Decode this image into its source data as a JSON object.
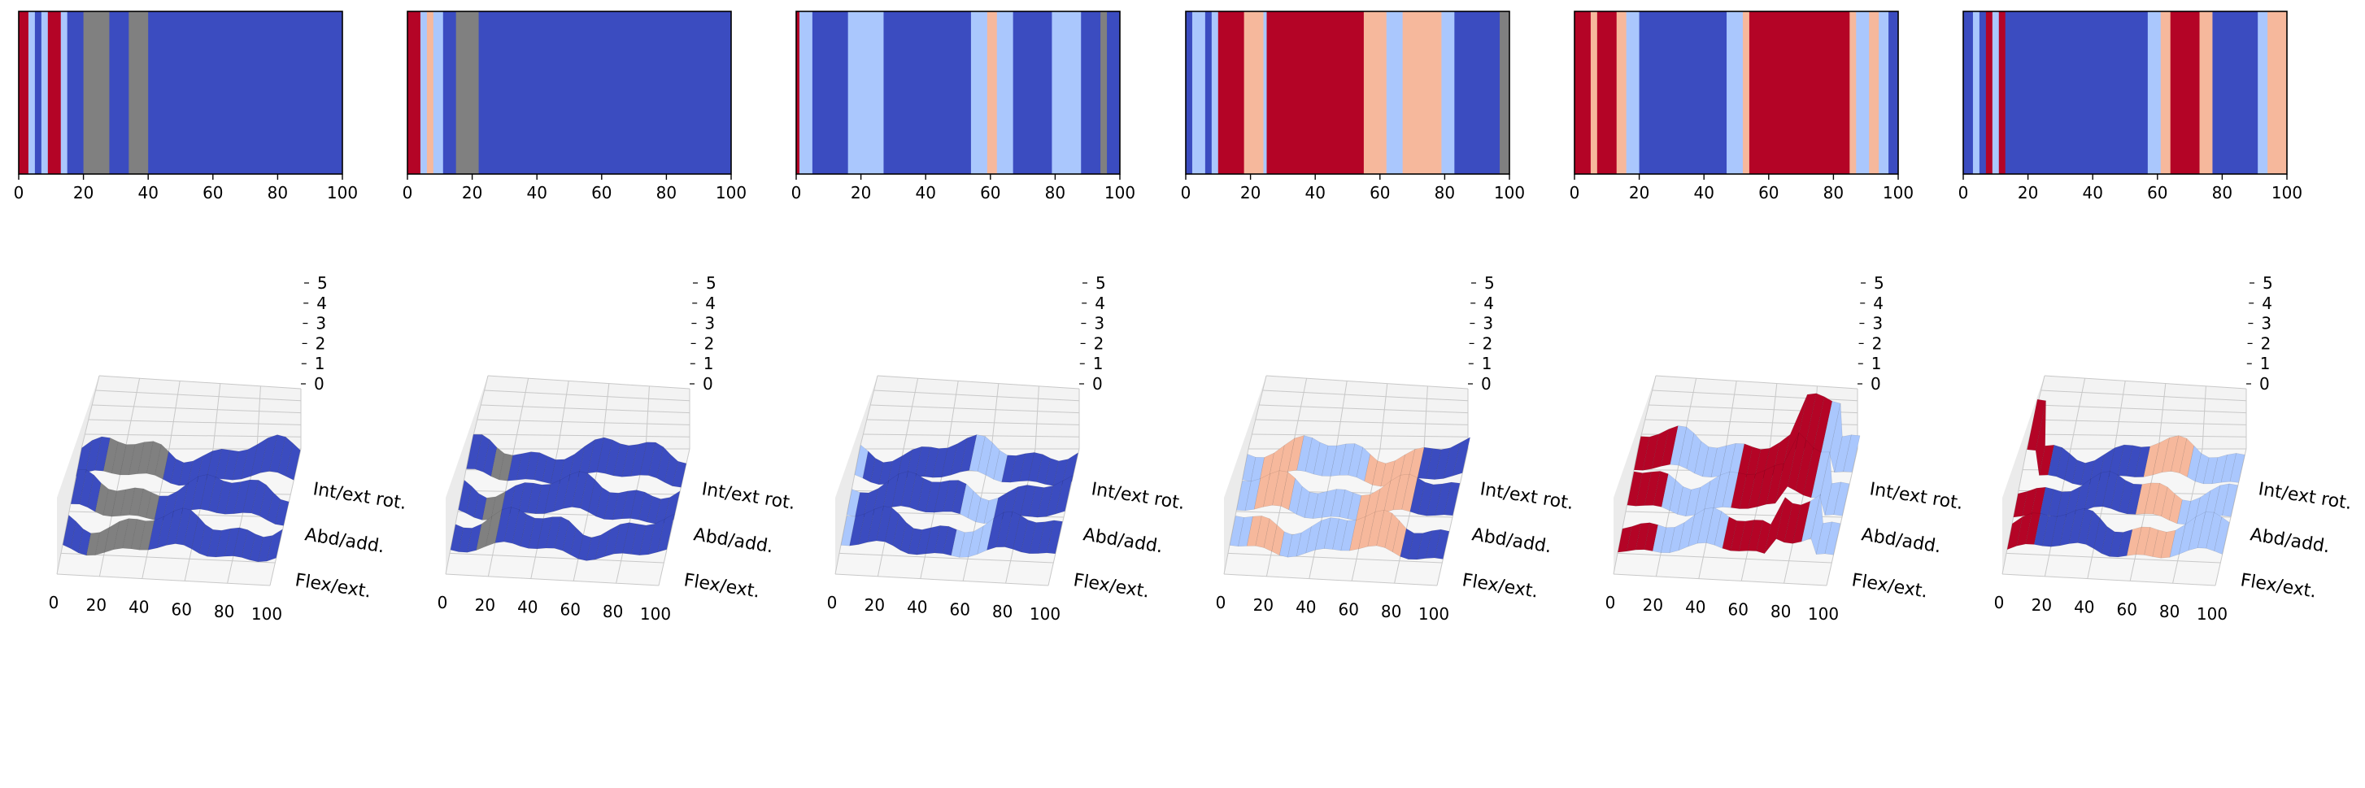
{
  "colors": {
    "blue": "#3b4cc0",
    "light_blue": "#aac7fd",
    "light_red": "#f6b89c",
    "red": "#b40426",
    "gray": "#808080",
    "pane": "#f3f3f3",
    "grid": "#c8c8c8"
  },
  "chart_data": [
    {
      "type": "heatmap",
      "panel": 1,
      "xlim": [
        0,
        100
      ],
      "x_ticks": [
        "0",
        "20",
        "40",
        "60",
        "80",
        "100"
      ],
      "segments": [
        {
          "start": 0,
          "end": 3,
          "color": "red"
        },
        {
          "start": 3,
          "end": 5,
          "color": "light_blue"
        },
        {
          "start": 5,
          "end": 7,
          "color": "blue"
        },
        {
          "start": 7,
          "end": 9,
          "color": "light_blue"
        },
        {
          "start": 9,
          "end": 13,
          "color": "red"
        },
        {
          "start": 13,
          "end": 15,
          "color": "light_blue"
        },
        {
          "start": 15,
          "end": 20,
          "color": "blue"
        },
        {
          "start": 20,
          "end": 28,
          "color": "gray"
        },
        {
          "start": 28,
          "end": 34,
          "color": "blue"
        },
        {
          "start": 34,
          "end": 40,
          "color": "gray"
        },
        {
          "start": 40,
          "end": 100,
          "color": "blue"
        }
      ]
    },
    {
      "type": "heatmap",
      "panel": 2,
      "xlim": [
        0,
        100
      ],
      "x_ticks": [
        "0",
        "20",
        "40",
        "60",
        "80",
        "100"
      ],
      "segments": [
        {
          "start": 0,
          "end": 4,
          "color": "red"
        },
        {
          "start": 4,
          "end": 6,
          "color": "light_blue"
        },
        {
          "start": 6,
          "end": 8,
          "color": "light_red"
        },
        {
          "start": 8,
          "end": 11,
          "color": "light_blue"
        },
        {
          "start": 11,
          "end": 15,
          "color": "blue"
        },
        {
          "start": 15,
          "end": 22,
          "color": "gray"
        },
        {
          "start": 22,
          "end": 100,
          "color": "blue"
        }
      ]
    },
    {
      "type": "heatmap",
      "panel": 3,
      "xlim": [
        0,
        100
      ],
      "x_ticks": [
        "0",
        "20",
        "40",
        "60",
        "80",
        "100"
      ],
      "segments": [
        {
          "start": 0,
          "end": 1,
          "color": "red"
        },
        {
          "start": 1,
          "end": 5,
          "color": "light_blue"
        },
        {
          "start": 5,
          "end": 16,
          "color": "blue"
        },
        {
          "start": 16,
          "end": 27,
          "color": "light_blue"
        },
        {
          "start": 27,
          "end": 54,
          "color": "blue"
        },
        {
          "start": 54,
          "end": 59,
          "color": "light_blue"
        },
        {
          "start": 59,
          "end": 62,
          "color": "light_red"
        },
        {
          "start": 62,
          "end": 67,
          "color": "light_blue"
        },
        {
          "start": 67,
          "end": 79,
          "color": "blue"
        },
        {
          "start": 79,
          "end": 88,
          "color": "light_blue"
        },
        {
          "start": 88,
          "end": 94,
          "color": "blue"
        },
        {
          "start": 94,
          "end": 96,
          "color": "gray"
        },
        {
          "start": 96,
          "end": 100,
          "color": "blue"
        }
      ]
    },
    {
      "type": "heatmap",
      "panel": 4,
      "xlim": [
        0,
        100
      ],
      "x_ticks": [
        "0",
        "20",
        "40",
        "60",
        "80",
        "100"
      ],
      "segments": [
        {
          "start": 0,
          "end": 2,
          "color": "blue"
        },
        {
          "start": 2,
          "end": 6,
          "color": "light_blue"
        },
        {
          "start": 6,
          "end": 8,
          "color": "blue"
        },
        {
          "start": 8,
          "end": 10,
          "color": "light_blue"
        },
        {
          "start": 10,
          "end": 18,
          "color": "red"
        },
        {
          "start": 18,
          "end": 24,
          "color": "light_red"
        },
        {
          "start": 24,
          "end": 25,
          "color": "light_blue"
        },
        {
          "start": 25,
          "end": 55,
          "color": "red"
        },
        {
          "start": 55,
          "end": 62,
          "color": "light_red"
        },
        {
          "start": 62,
          "end": 67,
          "color": "light_blue"
        },
        {
          "start": 67,
          "end": 79,
          "color": "light_red"
        },
        {
          "start": 79,
          "end": 83,
          "color": "light_blue"
        },
        {
          "start": 83,
          "end": 97,
          "color": "blue"
        },
        {
          "start": 97,
          "end": 100,
          "color": "gray"
        }
      ]
    },
    {
      "type": "heatmap",
      "panel": 5,
      "xlim": [
        0,
        100
      ],
      "x_ticks": [
        "0",
        "20",
        "40",
        "60",
        "80",
        "100"
      ],
      "segments": [
        {
          "start": 0,
          "end": 5,
          "color": "red"
        },
        {
          "start": 5,
          "end": 7,
          "color": "light_red"
        },
        {
          "start": 7,
          "end": 13,
          "color": "red"
        },
        {
          "start": 13,
          "end": 16,
          "color": "light_red"
        },
        {
          "start": 16,
          "end": 20,
          "color": "light_blue"
        },
        {
          "start": 20,
          "end": 47,
          "color": "blue"
        },
        {
          "start": 47,
          "end": 52,
          "color": "light_blue"
        },
        {
          "start": 52,
          "end": 54,
          "color": "light_red"
        },
        {
          "start": 54,
          "end": 85,
          "color": "red"
        },
        {
          "start": 85,
          "end": 87,
          "color": "light_red"
        },
        {
          "start": 87,
          "end": 91,
          "color": "light_blue"
        },
        {
          "start": 91,
          "end": 94,
          "color": "light_red"
        },
        {
          "start": 94,
          "end": 97,
          "color": "light_blue"
        },
        {
          "start": 97,
          "end": 100,
          "color": "blue"
        }
      ]
    },
    {
      "type": "heatmap",
      "panel": 6,
      "xlim": [
        0,
        100
      ],
      "x_ticks": [
        "0",
        "20",
        "40",
        "60",
        "80",
        "100"
      ],
      "segments": [
        {
          "start": 0,
          "end": 3,
          "color": "blue"
        },
        {
          "start": 3,
          "end": 5,
          "color": "light_blue"
        },
        {
          "start": 5,
          "end": 7,
          "color": "blue"
        },
        {
          "start": 7,
          "end": 9,
          "color": "red"
        },
        {
          "start": 9,
          "end": 11,
          "color": "light_blue"
        },
        {
          "start": 11,
          "end": 13,
          "color": "red"
        },
        {
          "start": 13,
          "end": 57,
          "color": "blue"
        },
        {
          "start": 57,
          "end": 61,
          "color": "light_blue"
        },
        {
          "start": 61,
          "end": 64,
          "color": "light_red"
        },
        {
          "start": 64,
          "end": 73,
          "color": "red"
        },
        {
          "start": 73,
          "end": 77,
          "color": "light_red"
        },
        {
          "start": 77,
          "end": 91,
          "color": "blue"
        },
        {
          "start": 91,
          "end": 94,
          "color": "light_blue"
        },
        {
          "start": 94,
          "end": 100,
          "color": "light_red"
        }
      ]
    },
    {
      "type": "surface",
      "panel": 1,
      "x_ticks": [
        "0",
        "20",
        "40",
        "60",
        "80",
        "100"
      ],
      "z_ticks": [
        "0",
        "1",
        "2",
        "3",
        "4",
        "5"
      ],
      "y_labels": [
        "Int/ext rot.",
        "Abd/add.",
        "Flex/ext."
      ],
      "zlim": [
        0,
        5
      ],
      "surface_bands": [
        {
          "start": 0,
          "end": 14,
          "color": "blue"
        },
        {
          "start": 14,
          "end": 40,
          "color": "gray"
        },
        {
          "start": 40,
          "end": 100,
          "color": "blue"
        }
      ]
    },
    {
      "type": "surface",
      "panel": 2,
      "x_ticks": [
        "0",
        "20",
        "40",
        "60",
        "80",
        "100"
      ],
      "z_ticks": [
        "0",
        "1",
        "2",
        "3",
        "4",
        "5"
      ],
      "y_labels": [
        "Int/ext rot.",
        "Abd/add.",
        "Flex/ext."
      ],
      "zlim": [
        0,
        5
      ],
      "surface_bands": [
        {
          "start": 0,
          "end": 11,
          "color": "blue"
        },
        {
          "start": 11,
          "end": 22,
          "color": "gray"
        },
        {
          "start": 22,
          "end": 100,
          "color": "blue"
        }
      ]
    },
    {
      "type": "surface",
      "panel": 3,
      "x_ticks": [
        "0",
        "20",
        "40",
        "60",
        "80",
        "100"
      ],
      "z_ticks": [
        "0",
        "1",
        "2",
        "3",
        "4",
        "5"
      ],
      "y_labels": [
        "Int/ext rot.",
        "Abd/add.",
        "Flex/ext."
      ],
      "zlim": [
        0,
        5
      ],
      "surface_bands": [
        {
          "start": 0,
          "end": 5,
          "color": "light_blue"
        },
        {
          "start": 5,
          "end": 54,
          "color": "blue"
        },
        {
          "start": 54,
          "end": 67,
          "color": "light_blue"
        },
        {
          "start": 67,
          "end": 100,
          "color": "blue"
        }
      ]
    },
    {
      "type": "surface",
      "panel": 4,
      "x_ticks": [
        "0",
        "20",
        "40",
        "60",
        "80",
        "100"
      ],
      "z_ticks": [
        "0",
        "1",
        "2",
        "3",
        "4",
        "5"
      ],
      "y_labels": [
        "Int/ext rot.",
        "Abd/add.",
        "Flex/ext."
      ],
      "zlim": [
        0,
        5
      ],
      "surface_bands": [
        {
          "start": 0,
          "end": 10,
          "color": "light_blue"
        },
        {
          "start": 10,
          "end": 25,
          "color": "light_red"
        },
        {
          "start": 25,
          "end": 55,
          "color": "light_blue"
        },
        {
          "start": 55,
          "end": 79,
          "color": "light_red"
        },
        {
          "start": 79,
          "end": 100,
          "color": "blue"
        }
      ]
    },
    {
      "type": "surface",
      "panel": 5,
      "x_ticks": [
        "0",
        "20",
        "40",
        "60",
        "80",
        "100"
      ],
      "z_ticks": [
        "0",
        "1",
        "2",
        "3",
        "4",
        "5"
      ],
      "y_labels": [
        "Int/ext rot.",
        "Abd/add.",
        "Flex/ext."
      ],
      "zlim": [
        0,
        5
      ],
      "surface_bands": [
        {
          "start": 0,
          "end": 16,
          "color": "red"
        },
        {
          "start": 16,
          "end": 47,
          "color": "light_blue"
        },
        {
          "start": 47,
          "end": 85,
          "color": "red"
        },
        {
          "start": 85,
          "end": 100,
          "color": "light_blue"
        }
      ]
    },
    {
      "type": "surface",
      "panel": 6,
      "x_ticks": [
        "0",
        "20",
        "40",
        "60",
        "80",
        "100"
      ],
      "z_ticks": [
        "0",
        "1",
        "2",
        "3",
        "4",
        "5"
      ],
      "y_labels": [
        "Int/ext rot.",
        "Abd/add.",
        "Flex/ext."
      ],
      "zlim": [
        0,
        5
      ],
      "surface_bands": [
        {
          "start": 0,
          "end": 13,
          "color": "red"
        },
        {
          "start": 13,
          "end": 57,
          "color": "blue"
        },
        {
          "start": 57,
          "end": 77,
          "color": "light_red"
        },
        {
          "start": 77,
          "end": 100,
          "color": "light_blue"
        }
      ]
    }
  ]
}
